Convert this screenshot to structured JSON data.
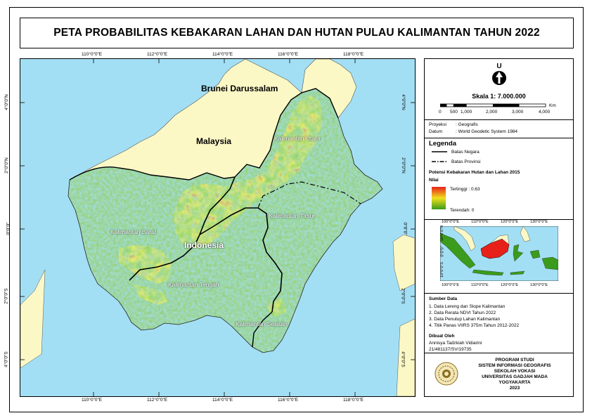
{
  "title": "PETA PROBABILITAS KEBAKARAN LAHAN DAN HUTAN PULAU KALIMANTAN TAHUN 2022",
  "map": {
    "lon_ticks": [
      "110°0\"0\"E",
      "112°0\"0\"E",
      "114°0\"0\"E",
      "116°0\"0\"E",
      "118°0\"0\"E"
    ],
    "lat_ticks": [
      "4°0\"0\"N",
      "2°0\"0\"N",
      "0°0\"0\"",
      "2°0\"0\"S",
      "4°0\"0\"S"
    ],
    "labels": {
      "brunei": "Brunei Darussalam",
      "malaysia": "Malaysia",
      "indonesia": "Indonesia",
      "kaltara": "Kalimantan Utara",
      "kaltim": "Kalimantan Timur",
      "kalbar": "Kalimantan Barat",
      "kalteng": "Kalimantan Tengah",
      "kalsel": "Kalimantan Selatan"
    },
    "colors": {
      "sea": "#a3dff4",
      "neighbor": "#fbf8c6",
      "low": "#3a9b1c",
      "mid": "#f0e01c",
      "high": "#e8201a"
    }
  },
  "north": {
    "letter": "U"
  },
  "scale": {
    "label": "Skala 1: 7.000.000",
    "ticks": [
      "0",
      "500",
      "1,000",
      "2,000",
      "3,000",
      "4,000"
    ],
    "unit": "Km"
  },
  "projection": {
    "line1_key": "Proyeksi",
    "line1_val": ": Geografis",
    "line2_key": "Datum",
    "line2_val": ": World Geodetic System 1984"
  },
  "legend": {
    "title": "Legenda",
    "items": [
      "Batas Negara",
      "Batas Provinsi"
    ],
    "raster_title": "Potensi Kebakaran Hutan dan Lahan 2015",
    "value_label": "Nilai",
    "high": "Tertinggi : 0.63",
    "low": "Terendah: 0"
  },
  "inset": {
    "lon_ticks": [
      "100°0\"0\"E",
      "110°0\"0\"E",
      "120°0\"0\"E",
      "130°0\"0\"E"
    ],
    "lat_ticks": [
      "10°0\"0\"N",
      "0°0\"0\"",
      "10°0\"0\"S"
    ]
  },
  "sources": {
    "title": "Sumber Data",
    "items": [
      "1. Data Lereng dan Slope Kalimantan",
      "2. Data Rerata NDVI Tahun 2022",
      "3. Data Penutup Lahan Kalimantan",
      "4. Titik Panas VIIRS 375m Tahun 2012-2022"
    ]
  },
  "author": {
    "title": "Dibuat Oleh",
    "name": "Annisya Tadzkiah Vidiarini",
    "id": "21/481137/SV/19735"
  },
  "institution": {
    "lines": [
      "PROGRAM STUDI",
      "SISTEM INFORMASI GEOGRAFIS",
      "SEKOLAH VOKASI",
      "UNIVERSITAS GADJAH MADA",
      "YOGYAKARTA",
      "2023"
    ]
  }
}
